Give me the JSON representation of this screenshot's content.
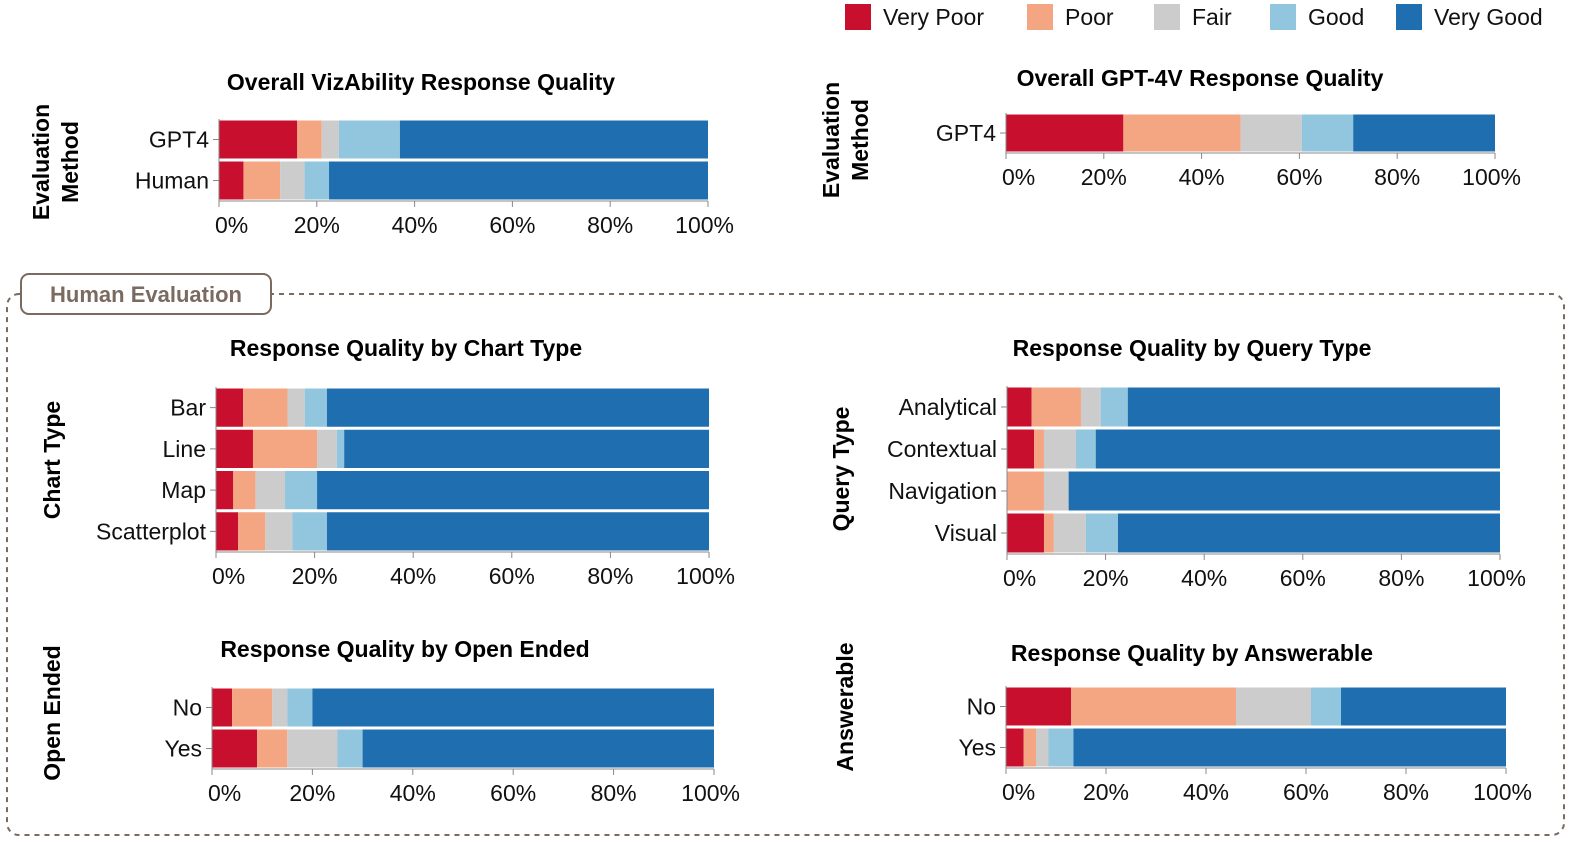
{
  "legend": {
    "categories": [
      "Very Poor",
      "Poor",
      "Fair",
      "Good",
      "Very Good"
    ],
    "colors": [
      "#c8102e",
      "#f4a582",
      "#cccccc",
      "#92c5de",
      "#1f6fb0"
    ]
  },
  "group": {
    "label": "Human Evaluation",
    "border_color": "#7a6a60"
  },
  "chart_data": [
    {
      "type": "bar",
      "orientation": "horizontal",
      "stacked": "normalized",
      "title": "Overall VizAbility Response Quality",
      "ylabel": [
        "Evaluation",
        "Method"
      ],
      "categories": [
        "GPT4",
        "Human"
      ],
      "series": [
        {
          "name": "Very Poor",
          "values": [
            16,
            5
          ]
        },
        {
          "name": "Poor",
          "values": [
            5,
            7.5
          ]
        },
        {
          "name": "Fair",
          "values": [
            3.5,
            5
          ]
        },
        {
          "name": "Good",
          "values": [
            12.5,
            5
          ]
        },
        {
          "name": "Very Good",
          "values": [
            63,
            77.5
          ]
        }
      ],
      "xlim": [
        0,
        100
      ],
      "xticks": [
        "0%",
        "20%",
        "40%",
        "60%",
        "80%",
        "100%"
      ]
    },
    {
      "type": "bar",
      "orientation": "horizontal",
      "stacked": "normalized",
      "title": "Overall GPT-4V Response Quality",
      "ylabel": [
        "Evaluation",
        "Method"
      ],
      "categories": [
        "GPT4"
      ],
      "series": [
        {
          "name": "Very Poor",
          "values": [
            24
          ]
        },
        {
          "name": "Poor",
          "values": [
            24
          ]
        },
        {
          "name": "Fair",
          "values": [
            12.5
          ]
        },
        {
          "name": "Good",
          "values": [
            10.5
          ]
        },
        {
          "name": "Very Good",
          "values": [
            29
          ]
        }
      ],
      "xlim": [
        0,
        100
      ],
      "xticks": [
        "0%",
        "20%",
        "40%",
        "60%",
        "80%",
        "100%"
      ]
    },
    {
      "type": "bar",
      "orientation": "horizontal",
      "stacked": "normalized",
      "title": "Response Quality by Chart Type",
      "ylabel": [
        "Chart Type"
      ],
      "categories": [
        "Bar",
        "Line",
        "Map",
        "Scatterplot"
      ],
      "series": [
        {
          "name": "Very Poor",
          "values": [
            5.5,
            7.5,
            3.5,
            4.5
          ]
        },
        {
          "name": "Poor",
          "values": [
            9,
            13,
            4.5,
            5.5
          ]
        },
        {
          "name": "Fair",
          "values": [
            3.5,
            4,
            6,
            5.5
          ]
        },
        {
          "name": "Good",
          "values": [
            4.5,
            1.5,
            6.5,
            7
          ]
        },
        {
          "name": "Very Good",
          "values": [
            77.5,
            74,
            79.5,
            77.5
          ]
        }
      ],
      "xlim": [
        0,
        100
      ],
      "xticks": [
        "0%",
        "20%",
        "40%",
        "60%",
        "80%",
        "100%"
      ]
    },
    {
      "type": "bar",
      "orientation": "horizontal",
      "stacked": "normalized",
      "title": "Response Quality by Query Type",
      "ylabel": [
        "Query Type"
      ],
      "categories": [
        "Analytical",
        "Contextual",
        "Navigation",
        "Visual"
      ],
      "series": [
        {
          "name": "Very Poor",
          "values": [
            5,
            5.5,
            0,
            7.5
          ]
        },
        {
          "name": "Poor",
          "values": [
            10,
            2,
            7.5,
            2
          ]
        },
        {
          "name": "Fair",
          "values": [
            4,
            6.5,
            5,
            6.5
          ]
        },
        {
          "name": "Good",
          "values": [
            5.5,
            4,
            0,
            6.5
          ]
        },
        {
          "name": "Very Good",
          "values": [
            75.5,
            82,
            87.5,
            77.5
          ]
        }
      ],
      "xlim": [
        0,
        100
      ],
      "xticks": [
        "0%",
        "20%",
        "40%",
        "60%",
        "80%",
        "100%"
      ]
    },
    {
      "type": "bar",
      "orientation": "horizontal",
      "stacked": "normalized",
      "title": "Response Quality by Open Ended",
      "ylabel": [
        "Open Ended"
      ],
      "categories": [
        "No",
        "Yes"
      ],
      "series": [
        {
          "name": "Very Poor",
          "values": [
            4,
            9
          ]
        },
        {
          "name": "Poor",
          "values": [
            8,
            6
          ]
        },
        {
          "name": "Fair",
          "values": [
            3,
            10
          ]
        },
        {
          "name": "Good",
          "values": [
            5,
            5
          ]
        },
        {
          "name": "Very Good",
          "values": [
            80,
            70
          ]
        }
      ],
      "xlim": [
        0,
        100
      ],
      "xticks": [
        "0%",
        "20%",
        "40%",
        "60%",
        "80%",
        "100%"
      ]
    },
    {
      "type": "bar",
      "orientation": "horizontal",
      "stacked": "normalized",
      "title": "Response Quality by Answerable",
      "ylabel": [
        "Answerable"
      ],
      "categories": [
        "No",
        "Yes"
      ],
      "series": [
        {
          "name": "Very Poor",
          "values": [
            13,
            3.5
          ]
        },
        {
          "name": "Poor",
          "values": [
            33,
            2.5
          ]
        },
        {
          "name": "Fair",
          "values": [
            15,
            2.5
          ]
        },
        {
          "name": "Good",
          "values": [
            6,
            5
          ]
        },
        {
          "name": "Very Good",
          "values": [
            33,
            86.5
          ]
        }
      ],
      "xlim": [
        0,
        100
      ],
      "xticks": [
        "0%",
        "20%",
        "40%",
        "60%",
        "80%",
        "100%"
      ]
    }
  ]
}
